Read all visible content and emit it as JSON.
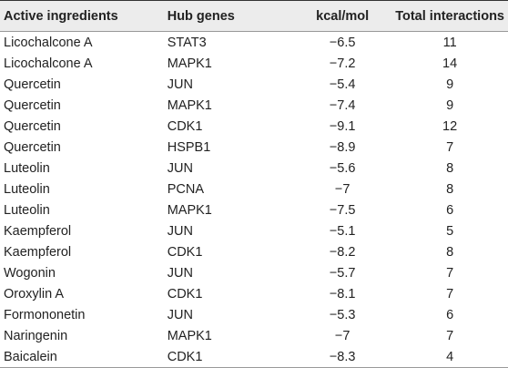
{
  "table": {
    "header": [
      "Active ingredients",
      "Hub genes",
      "kcal/mol",
      "Total interactions"
    ],
    "rows": [
      [
        "Licochalcone A",
        "STAT3",
        "−6.5",
        "11"
      ],
      [
        "Licochalcone A",
        "MAPK1",
        "−7.2",
        "14"
      ],
      [
        "Quercetin",
        "JUN",
        "−5.4",
        "9"
      ],
      [
        "Quercetin",
        "MAPK1",
        "−7.4",
        "9"
      ],
      [
        "Quercetin",
        "CDK1",
        "−9.1",
        "12"
      ],
      [
        "Quercetin",
        "HSPB1",
        "−8.9",
        "7"
      ],
      [
        "Luteolin",
        "JUN",
        "−5.6",
        "8"
      ],
      [
        "Luteolin",
        "PCNA",
        "−7",
        "8"
      ],
      [
        "Luteolin",
        "MAPK1",
        "−7.5",
        "6"
      ],
      [
        "Kaempferol",
        "JUN",
        "−5.1",
        "5"
      ],
      [
        "Kaempferol",
        "CDK1",
        "−8.2",
        "8"
      ],
      [
        "Wogonin",
        "JUN",
        "−5.7",
        "7"
      ],
      [
        "Oroxylin A",
        "CDK1",
        "−8.1",
        "7"
      ],
      [
        "Formononetin",
        "JUN",
        "−5.3",
        "6"
      ],
      [
        "Naringenin",
        "MAPK1",
        "−7",
        "7"
      ],
      [
        "Baicalein",
        "CDK1",
        "−8.3",
        "4"
      ]
    ]
  }
}
